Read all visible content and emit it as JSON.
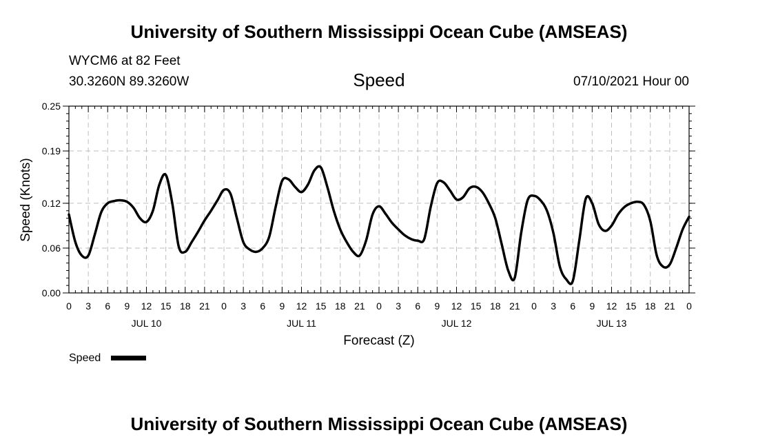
{
  "header": {
    "title": "University of Southern Mississippi Ocean Cube (AMSEAS)",
    "station": "WYCM6 at 82 Feet",
    "coords": "30.3260N  89.3260W",
    "date": "07/10/2021 Hour 00"
  },
  "footer": {
    "title": "University of Southern Mississippi Ocean Cube (AMSEAS)"
  },
  "chart_data": {
    "type": "line",
    "title": "Speed",
    "xlabel": "Forecast (Z)",
    "ylabel": "Speed (Knots)",
    "xlim": [
      0,
      96
    ],
    "ylim": [
      0,
      0.25
    ],
    "grid": true,
    "y_ticks": [
      0.0,
      0.06,
      0.12,
      0.19,
      0.25
    ],
    "y_tick_labels": [
      "0.00",
      "0.06",
      "0.12",
      "0.19",
      "0.25"
    ],
    "x_ticks": [
      0,
      3,
      6,
      9,
      12,
      15,
      18,
      21,
      24,
      27,
      30,
      33,
      36,
      39,
      42,
      45,
      48,
      51,
      54,
      57,
      60,
      63,
      66,
      69,
      72,
      75,
      78,
      81,
      84,
      87,
      90,
      93,
      96
    ],
    "x_tick_labels": [
      "0",
      "3",
      "6",
      "9",
      "12",
      "15",
      "18",
      "21",
      "0",
      "3",
      "6",
      "9",
      "12",
      "15",
      "18",
      "21",
      "0",
      "3",
      "6",
      "9",
      "12",
      "15",
      "18",
      "21",
      "0",
      "3",
      "6",
      "9",
      "12",
      "15",
      "18",
      "21",
      "0"
    ],
    "day_labels": [
      {
        "x": 12,
        "label": "JUL 10"
      },
      {
        "x": 36,
        "label": "JUL 11"
      },
      {
        "x": 60,
        "label": "JUL 12"
      },
      {
        "x": 84,
        "label": "JUL 13"
      }
    ],
    "legend": {
      "position": "bottom-left",
      "entries": [
        "Speed"
      ]
    },
    "series": [
      {
        "name": "Speed",
        "color": "#000000",
        "x": [
          0,
          1,
          2,
          3,
          4,
          5,
          6,
          7,
          8,
          9,
          10,
          11,
          12,
          13,
          14,
          15,
          16,
          17,
          18,
          19,
          20,
          21,
          22,
          23,
          24,
          25,
          26,
          27,
          28,
          29,
          30,
          31,
          32,
          33,
          34,
          35,
          36,
          37,
          38,
          39,
          40,
          41,
          42,
          43,
          44,
          45,
          46,
          47,
          48,
          49,
          50,
          51,
          52,
          53,
          54,
          55,
          56,
          57,
          58,
          59,
          60,
          61,
          62,
          63,
          64,
          65,
          66,
          67,
          68,
          69,
          70,
          71,
          72,
          73,
          74,
          75,
          76,
          77,
          78,
          79,
          80,
          81,
          82,
          83,
          84,
          85,
          86,
          87,
          88,
          89,
          90,
          91,
          92,
          93,
          94,
          95,
          96
        ],
        "values": [
          0.105,
          0.068,
          0.05,
          0.05,
          0.078,
          0.108,
          0.12,
          0.123,
          0.124,
          0.122,
          0.114,
          0.1,
          0.095,
          0.11,
          0.145,
          0.158,
          0.12,
          0.062,
          0.055,
          0.068,
          0.082,
          0.097,
          0.11,
          0.124,
          0.138,
          0.133,
          0.1,
          0.068,
          0.058,
          0.055,
          0.06,
          0.075,
          0.115,
          0.15,
          0.152,
          0.142,
          0.135,
          0.145,
          0.164,
          0.168,
          0.142,
          0.11,
          0.085,
          0.068,
          0.055,
          0.05,
          0.07,
          0.105,
          0.116,
          0.106,
          0.094,
          0.085,
          0.077,
          0.072,
          0.07,
          0.072,
          0.115,
          0.147,
          0.148,
          0.137,
          0.125,
          0.128,
          0.14,
          0.142,
          0.135,
          0.12,
          0.1,
          0.065,
          0.03,
          0.02,
          0.08,
          0.124,
          0.13,
          0.124,
          0.11,
          0.08,
          0.035,
          0.018,
          0.016,
          0.07,
          0.126,
          0.12,
          0.092,
          0.083,
          0.09,
          0.105,
          0.115,
          0.12,
          0.122,
          0.118,
          0.096,
          0.05,
          0.035,
          0.038,
          0.06,
          0.085,
          0.102
        ]
      }
    ]
  }
}
